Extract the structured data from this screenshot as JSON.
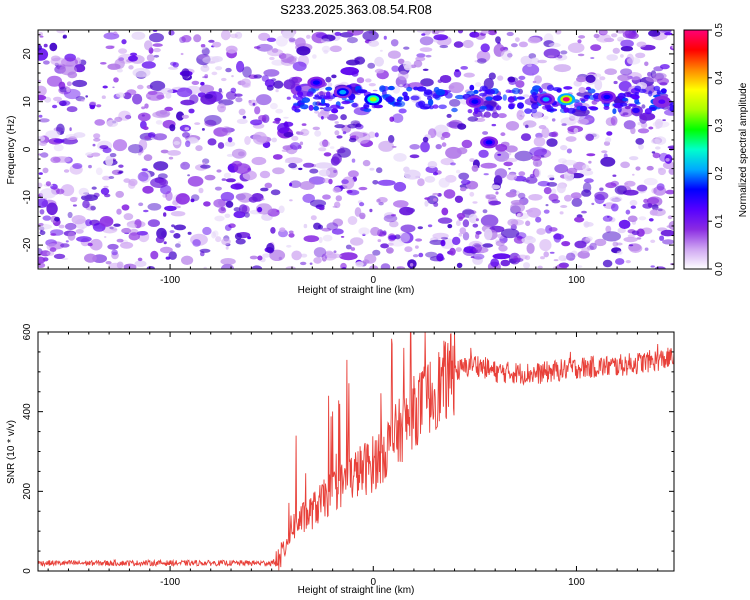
{
  "title": "S233.2025.363.08.54.R08",
  "chart_data": [
    {
      "type": "heatmap",
      "xlabel": "Height of straight line (km)",
      "ylabel": "Frequency (Hz)",
      "xlim": [
        -165,
        148
      ],
      "ylim": [
        -25,
        25
      ],
      "xticks": [
        -100,
        0,
        100
      ],
      "yticks": [
        -20,
        -10,
        0,
        10,
        20
      ],
      "colorbar": {
        "label": "Normalized spectral amplitude",
        "range": [
          0,
          0.5
        ],
        "ticks": [
          0,
          0.1,
          0.2,
          0.3,
          0.4,
          0.5
        ],
        "colors": [
          "#ffffff",
          "#cfa6f2",
          "#8a2be2",
          "#5500ff",
          "#0000ff",
          "#00aaff",
          "#00ffcc",
          "#00ff00",
          "#aaff00",
          "#ffff00",
          "#ff8800",
          "#ff0000",
          "#ff0077"
        ]
      },
      "features": [
        {
          "x": 0,
          "y": 10.5,
          "value": 0.33
        },
        {
          "x": -15,
          "y": 12,
          "value": 0.22
        },
        {
          "x": -28,
          "y": 14,
          "value": 0.18
        },
        {
          "x": 50,
          "y": 10,
          "value": 0.15
        },
        {
          "x": 57,
          "y": 1.5,
          "value": 0.16
        },
        {
          "x": 85,
          "y": 10.5,
          "value": 0.2
        },
        {
          "x": 95,
          "y": 10.5,
          "value": 0.48
        },
        {
          "x": 115,
          "y": 11,
          "value": 0.15
        },
        {
          "x": 142,
          "y": 10,
          "value": 0.14
        }
      ]
    },
    {
      "type": "line",
      "xlabel": "Height of straight line (km)",
      "ylabel": "SNR (10 * v/v)",
      "xlim": [
        -165,
        148
      ],
      "ylim": [
        0,
        600
      ],
      "xticks": [
        -100,
        0,
        100
      ],
      "yticks": [
        0,
        200,
        400,
        600
      ],
      "series_color": "#e8413a",
      "trend": [
        {
          "x": -165,
          "y": 20
        },
        {
          "x": -50,
          "y": 20
        },
        {
          "x": -46,
          "y": 30
        },
        {
          "x": -40,
          "y": 110
        },
        {
          "x": -30,
          "y": 150
        },
        {
          "x": -20,
          "y": 200
        },
        {
          "x": -10,
          "y": 240
        },
        {
          "x": 0,
          "y": 270
        },
        {
          "x": 10,
          "y": 330
        },
        {
          "x": 20,
          "y": 400
        },
        {
          "x": 30,
          "y": 450
        },
        {
          "x": 40,
          "y": 500
        },
        {
          "x": 50,
          "y": 520
        },
        {
          "x": 60,
          "y": 500
        },
        {
          "x": 80,
          "y": 495
        },
        {
          "x": 100,
          "y": 510
        },
        {
          "x": 120,
          "y": 515
        },
        {
          "x": 148,
          "y": 535
        }
      ],
      "spikes": [
        {
          "x": -38,
          "y": 340
        },
        {
          "x": -22,
          "y": 440
        },
        {
          "x": -13,
          "y": 530
        },
        {
          "x": 15,
          "y": 560
        },
        {
          "x": 40,
          "y": 600
        },
        {
          "x": 48,
          "y": 560
        },
        {
          "x": 97,
          "y": 550
        },
        {
          "x": 140,
          "y": 570
        }
      ]
    }
  ]
}
